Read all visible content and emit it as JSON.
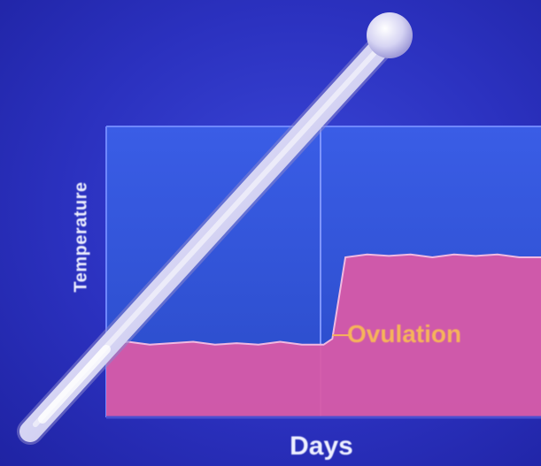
{
  "chart_data": {
    "type": "area",
    "title": "",
    "xlabel": "Days",
    "ylabel": "Temperature",
    "xlim": [
      0,
      100
    ],
    "ylim": [
      0,
      100
    ],
    "grid": false,
    "series": [
      {
        "x": [
          0,
          5,
          10,
          15,
          20,
          25,
          30,
          35,
          40,
          45,
          50,
          52,
          55,
          60,
          65,
          70,
          75,
          80,
          85,
          90,
          95,
          100
        ],
        "values": [
          25,
          26,
          25,
          25.5,
          26,
          25,
          25.5,
          25,
          26,
          25,
          25,
          27,
          55,
          56,
          55.5,
          56,
          55,
          56,
          55.5,
          56,
          55,
          55
        ],
        "color": "#d85aa8"
      }
    ],
    "annotations": [
      {
        "text": "Ovulation",
        "x": 52,
        "y": 27,
        "color": "#f6b45a"
      }
    ]
  },
  "colors": {
    "background": "#2b31bf",
    "plot_bg": "#2e55d8",
    "area_fill": "#d85aa8",
    "label_text": "#eef0ff"
  }
}
